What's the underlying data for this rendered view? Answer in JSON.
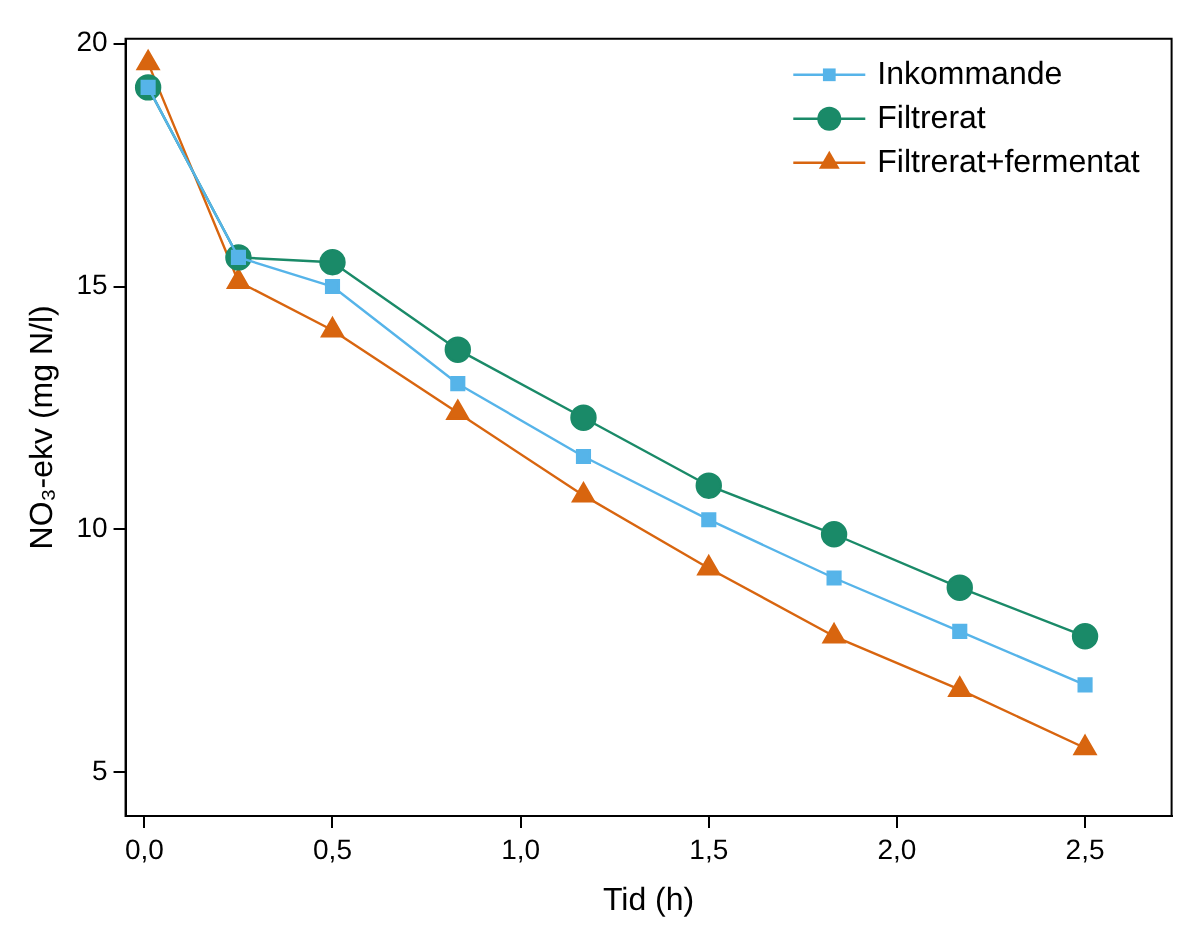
{
  "chart_data": {
    "type": "line",
    "xlabel": "Tid (h)",
    "ylabel": "NO₃-ekv (mg N/l)",
    "x": [
      0.01,
      0.25,
      0.5,
      0.833,
      1.167,
      1.5,
      1.833,
      2.167,
      2.5
    ],
    "series": [
      {
        "name": "Inkommande",
        "color": "#56b4e9",
        "marker": "square",
        "values": [
          19.1,
          15.6,
          15.0,
          13.0,
          11.5,
          10.2,
          9.0,
          7.9,
          6.8
        ]
      },
      {
        "name": "Filtrerat",
        "color": "#1a8a68",
        "marker": "circle",
        "values": [
          19.1,
          15.6,
          15.5,
          13.7,
          12.3,
          10.9,
          9.9,
          8.8,
          7.8
        ]
      },
      {
        "name": "Filtrerat+fermentat",
        "color": "#d8650f",
        "marker": "triangle",
        "values": [
          19.6,
          15.1,
          14.1,
          12.4,
          10.7,
          9.2,
          7.8,
          6.7,
          5.5
        ]
      }
    ],
    "xlim": [
      -0.05,
      2.73
    ],
    "ylim": [
      4.1,
      20.1
    ],
    "xticks": [
      {
        "value": 0,
        "label": "0,0"
      },
      {
        "value": 0.5,
        "label": "0,5"
      },
      {
        "value": 1,
        "label": "1,0"
      },
      {
        "value": 1.5,
        "label": "1,5"
      },
      {
        "value": 2,
        "label": "2,0"
      },
      {
        "value": 2.5,
        "label": "2,5"
      }
    ],
    "yticks": [
      5,
      10,
      15,
      20
    ],
    "grid": false,
    "legend": "top right",
    "line_style": "solid"
  }
}
